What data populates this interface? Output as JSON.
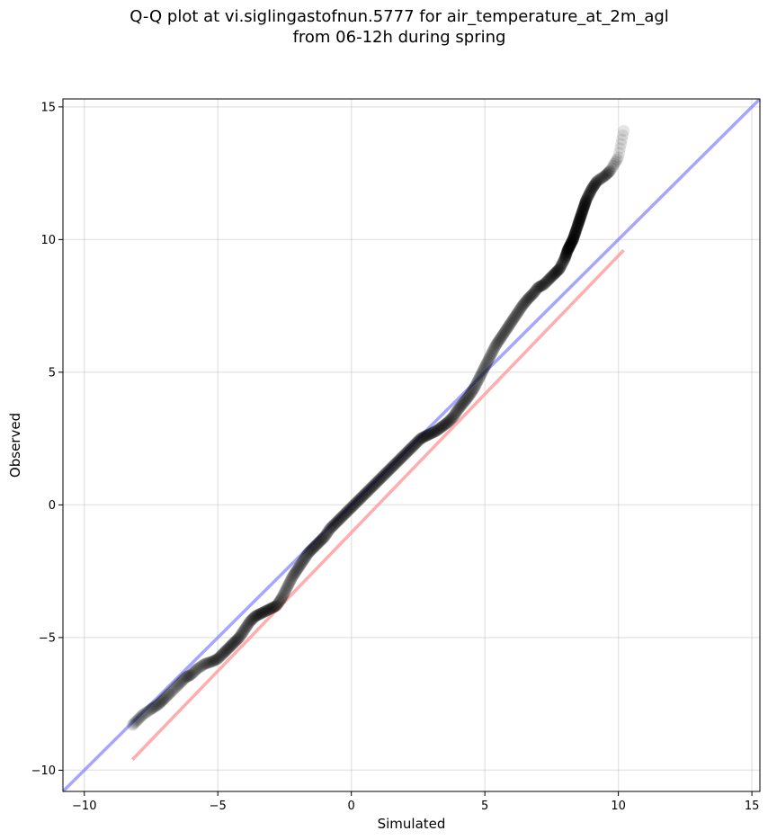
{
  "title_line1": "Q-Q plot at vi.siglingastofnun.5777 for air_temperature_at_2m_agl",
  "title_line2": "from 06-12h during spring",
  "chart_data": {
    "type": "scatter",
    "xlabel": "Simulated",
    "ylabel": "Observed",
    "xlim": [
      -10.8,
      15.3
    ],
    "ylim": [
      -10.8,
      15.3
    ],
    "xticks": [
      -10,
      -5,
      0,
      5,
      10,
      15
    ],
    "yticks": [
      -10,
      -5,
      0,
      5,
      10,
      15
    ],
    "xtick_labels": [
      "−10",
      "−5",
      "0",
      "5",
      "10",
      "15"
    ],
    "ytick_labels": [
      "−10",
      "−5",
      "0",
      "5",
      "10",
      "15"
    ],
    "grid": true,
    "reference_line": {
      "x": [
        -10.8,
        15.3
      ],
      "y": [
        -10.8,
        15.3
      ],
      "color": "#8080ff"
    },
    "fit_line": {
      "x": [
        -8.2,
        10.2
      ],
      "y": [
        -9.6,
        9.6
      ],
      "color": "#ff9999"
    },
    "marker_color": "#000000",
    "quantiles": {
      "x": [
        -8.2,
        -8.0,
        -7.8,
        -7.5,
        -7.2,
        -7.0,
        -6.8,
        -6.5,
        -6.2,
        -6.0,
        -5.8,
        -5.5,
        -5.2,
        -5.0,
        -4.8,
        -4.6,
        -4.4,
        -4.2,
        -4.0,
        -3.8,
        -3.6,
        -3.4,
        -3.2,
        -3.0,
        -2.8,
        -2.6,
        -2.4,
        -2.2,
        -2.0,
        -1.8,
        -1.6,
        -1.4,
        -1.2,
        -1.0,
        -0.8,
        -0.6,
        -0.4,
        -0.2,
        0.0,
        0.2,
        0.4,
        0.6,
        0.8,
        1.0,
        1.2,
        1.4,
        1.6,
        1.8,
        2.0,
        2.2,
        2.4,
        2.6,
        2.8,
        3.0,
        3.2,
        3.4,
        3.6,
        3.8,
        4.0,
        4.2,
        4.4,
        4.6,
        4.8,
        5.0,
        5.2,
        5.4,
        5.6,
        5.8,
        6.0,
        6.2,
        6.4,
        6.6,
        6.8,
        7.0,
        7.2,
        7.4,
        7.6,
        7.8,
        8.0,
        8.1,
        8.2,
        8.3,
        8.4,
        8.5,
        8.6,
        8.7,
        8.8,
        9.0,
        9.2,
        9.5,
        9.7,
        10.0,
        10.2
      ],
      "y": [
        -8.3,
        -8.1,
        -7.9,
        -7.7,
        -7.5,
        -7.3,
        -7.1,
        -6.8,
        -6.5,
        -6.4,
        -6.2,
        -6.0,
        -5.9,
        -5.8,
        -5.6,
        -5.4,
        -5.2,
        -5.0,
        -4.7,
        -4.4,
        -4.2,
        -4.1,
        -4.0,
        -3.9,
        -3.8,
        -3.5,
        -3.1,
        -2.7,
        -2.4,
        -2.1,
        -1.8,
        -1.6,
        -1.4,
        -1.2,
        -0.9,
        -0.7,
        -0.5,
        -0.3,
        -0.1,
        0.1,
        0.3,
        0.5,
        0.7,
        0.9,
        1.1,
        1.3,
        1.5,
        1.7,
        1.9,
        2.1,
        2.3,
        2.5,
        2.6,
        2.7,
        2.8,
        2.95,
        3.1,
        3.3,
        3.6,
        3.85,
        4.1,
        4.4,
        4.8,
        5.2,
        5.6,
        6.0,
        6.3,
        6.6,
        6.9,
        7.2,
        7.5,
        7.75,
        7.95,
        8.2,
        8.3,
        8.5,
        8.7,
        8.9,
        9.3,
        9.6,
        9.8,
        10.0,
        10.3,
        10.6,
        10.9,
        11.2,
        11.5,
        11.9,
        12.2,
        12.4,
        12.6,
        13.1,
        14.1
      ]
    }
  }
}
